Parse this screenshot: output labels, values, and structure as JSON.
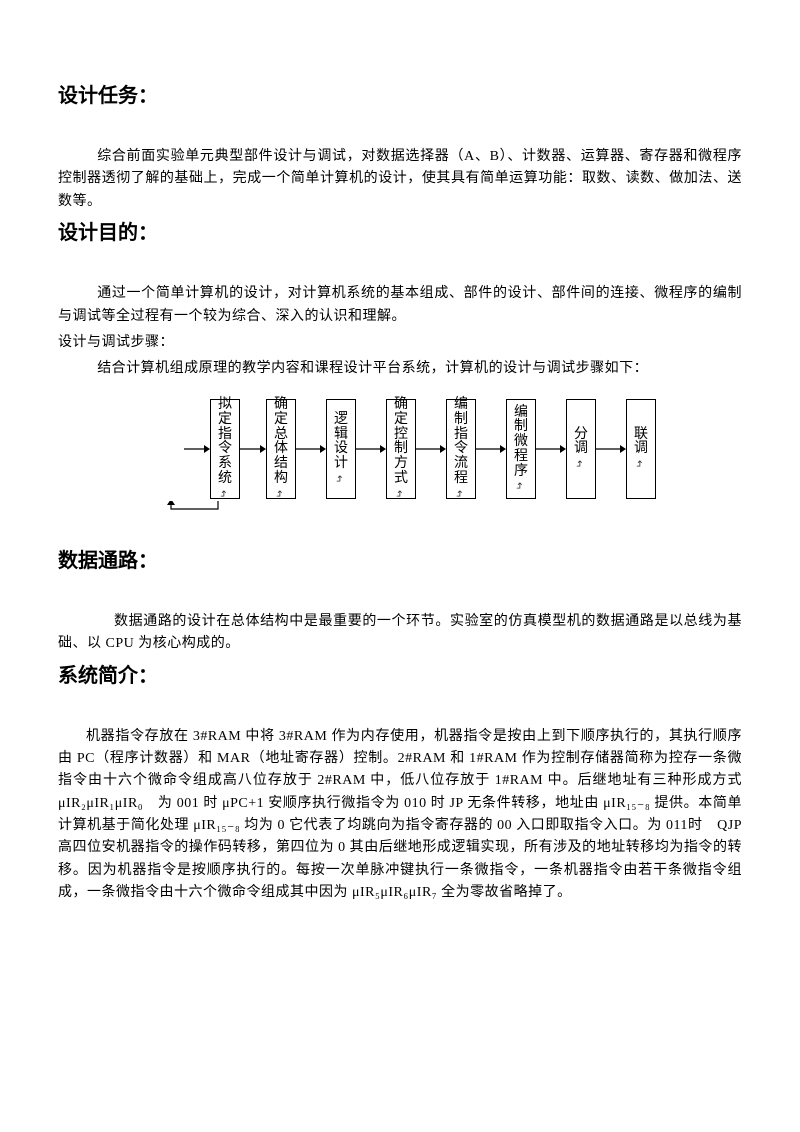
{
  "sections": {
    "task": {
      "title": "设计任务：",
      "p1": "综合前面实验单元典型部件设计与调试，对数据选择器（A、B）、计数器、运算器、寄存器和微程序控制器透彻了解的基础上，完成一个简单计算机的设计，使其具有简单运算功能：取数、读数、做加法、送数等。"
    },
    "goal": {
      "title": "设计目的：",
      "p1": "通过一个简单计算机的设计，对计算机系统的基本组成、部件的设计、部件间的连接、微程序的编制与调试等全过程有一个较为综合、深入的认识和理解。",
      "p2": "设计与调试步骤：",
      "p3": "结合计算机组成原理的教学内容和课程设计平台系统，计算机的设计与调试步骤如下："
    },
    "datapath": {
      "title": "数据通路：",
      "p1": "数据通路的设计在总体结构中是最重要的一个环节。实验室的仿真模型机的数据通路是以总线为基础、以 CPU 为核心构成的。"
    },
    "system": {
      "title": "系统简介：",
      "p1": "机器指令存放在 3#RAM 中将 3#RAM 作为内存使用，机器指令是按由上到下顺序执行的，其执行顺序由 PC（程序计数器）和 MAR（地址寄存器）控制。2#RAM 和 1#RAM 作为控制存储器简称为控存一条微指令由十六个微命令组成高八位存放于 2#RAM 中，低八位存放于 1#RAM 中。后继地址有三种形成方式 μIR₂μIR₁μIR₀　为 001 时 μPC+1 安顺序执行微指令为 010 时 JP 无条件转移，地址由 μIR₁₅₋₈ 提供。本简单计算机基于简化处理 μIR₁₅₋₈ 均为 0 它代表了均跳向为指令寄存器的 00 入口即取指令入口。为 011时　QJP 高四位安机器指令的操作码转移，第四位为 0 其由后继地形成逻辑实现，所有涉及的地址转移均为指令的转移。因为机器指令是按顺序执行的。每按一次单脉冲键执行一条微指令，一条机器指令由若干条微指令组成，一条微指令由十六个微命令组成其中因为 μIR₅μIR₆μIR₇ 全为零故省略掉了。"
    }
  },
  "flow": {
    "boxes": [
      "拟定指令系统",
      "确定总体结构",
      "逻辑设计",
      "确定控制方式",
      "编制指令流程",
      "编制微程序",
      "分调",
      "联调"
    ],
    "arrow_color": "#000000",
    "box_border": "#000000"
  }
}
